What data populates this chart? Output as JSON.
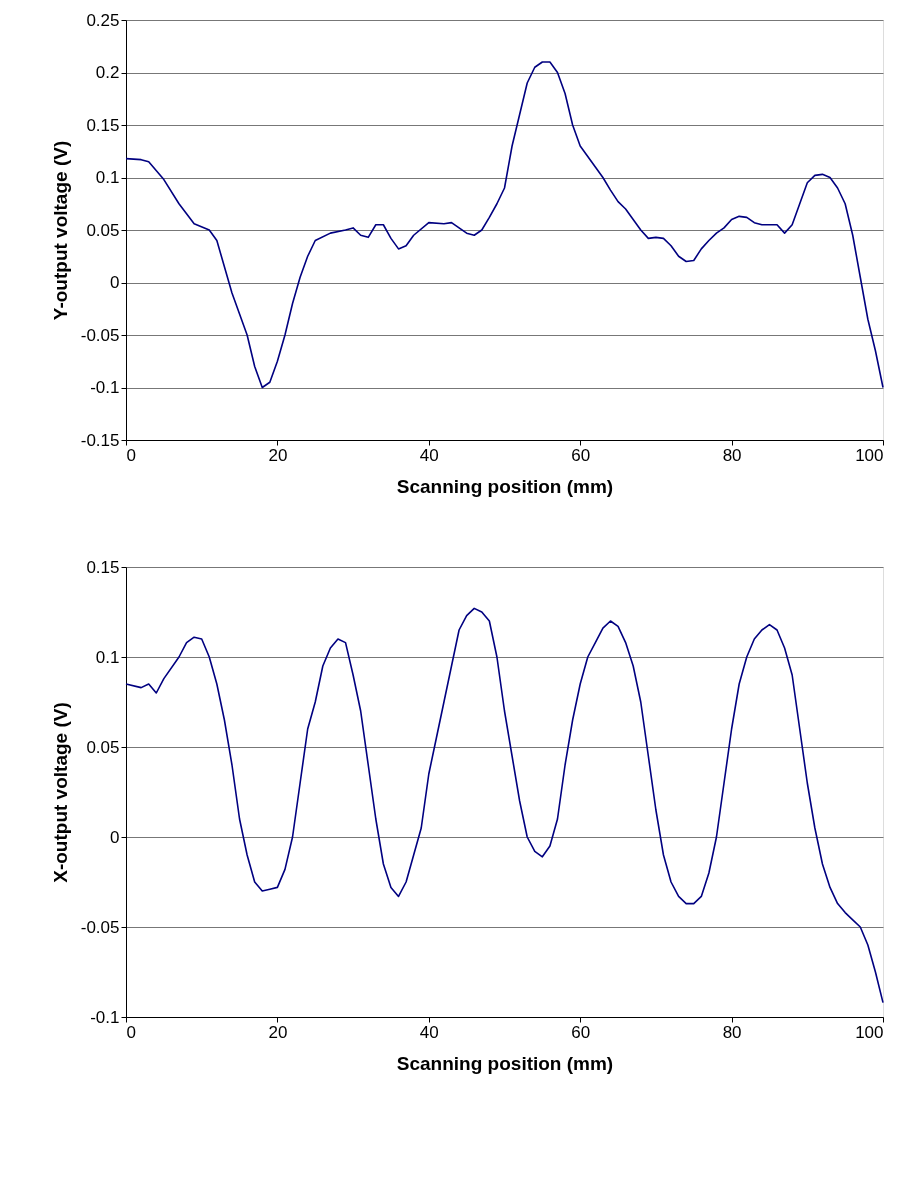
{
  "chart_data": [
    {
      "type": "line",
      "xlabel": "Scanning position (mm)",
      "ylabel": "Y-output voltage (V)",
      "xlim": [
        0,
        100
      ],
      "xticks": [
        0,
        20,
        40,
        60,
        80,
        100
      ],
      "ylim": [
        -0.15,
        0.25
      ],
      "yticks": [
        -0.15,
        -0.1,
        -0.05,
        0,
        0.05,
        0.1,
        0.15,
        0.2,
        0.25
      ],
      "grid": "y",
      "marker": "none",
      "line_style": "solid",
      "x": [
        0,
        2,
        3,
        5,
        7,
        9,
        11,
        12,
        13,
        14,
        15,
        16,
        17,
        18,
        19,
        20,
        21,
        22,
        23,
        24,
        25,
        27,
        29,
        30,
        31,
        32,
        33,
        34,
        35,
        36,
        37,
        38,
        40,
        42,
        43,
        45,
        46,
        47,
        48,
        49,
        50,
        51,
        52,
        53,
        54,
        55,
        56,
        57,
        58,
        59,
        60,
        61,
        62,
        63,
        64,
        65,
        66,
        67,
        68,
        69,
        70,
        71,
        72,
        73,
        74,
        75,
        76,
        77,
        78,
        79,
        80,
        81,
        82,
        83,
        84,
        85,
        86,
        87,
        88,
        89,
        90,
        91,
        92,
        93,
        94,
        95,
        96,
        97,
        98,
        99,
        100
      ],
      "series": [
        {
          "color": "#000080",
          "values": [
            0.118,
            0.117,
            0.115,
            0.098,
            0.075,
            0.056,
            0.05,
            0.04,
            0.015,
            -0.01,
            -0.03,
            -0.05,
            -0.08,
            -0.1,
            -0.095,
            -0.075,
            -0.05,
            -0.02,
            0.005,
            0.025,
            0.04,
            0.047,
            0.05,
            0.052,
            0.045,
            0.043,
            0.055,
            0.055,
            0.042,
            0.032,
            0.035,
            0.045,
            0.057,
            0.056,
            0.057,
            0.047,
            0.045,
            0.05,
            0.062,
            0.075,
            0.09,
            0.13,
            0.16,
            0.19,
            0.205,
            0.21,
            0.21,
            0.2,
            0.18,
            0.15,
            0.13,
            0.12,
            0.11,
            0.1,
            0.088,
            0.077,
            0.07,
            0.06,
            0.05,
            0.042,
            0.043,
            0.042,
            0.035,
            0.025,
            0.02,
            0.021,
            0.032,
            0.04,
            0.047,
            0.052,
            0.06,
            0.063,
            0.062,
            0.057,
            0.055,
            0.055,
            0.055,
            0.047,
            0.055,
            0.075,
            0.095,
            0.102,
            0.103,
            0.1,
            0.09,
            0.075,
            0.045,
            0.005,
            -0.035,
            -0.065,
            -0.1
          ]
        }
      ]
    },
    {
      "type": "line",
      "xlabel": "Scanning position (mm)",
      "ylabel": "X-output voltage (V)",
      "xlim": [
        0,
        100
      ],
      "xticks": [
        0,
        20,
        40,
        60,
        80,
        100
      ],
      "ylim": [
        -0.1,
        0.15
      ],
      "yticks": [
        -0.1,
        -0.05,
        0,
        0.05,
        0.1,
        0.15
      ],
      "grid": "y",
      "marker": "none",
      "line_style": "solid",
      "x": [
        0,
        2,
        3,
        4,
        5,
        7,
        8,
        9,
        10,
        11,
        12,
        13,
        14,
        15,
        16,
        17,
        18,
        19,
        20,
        21,
        22,
        23,
        24,
        25,
        26,
        27,
        28,
        29,
        30,
        31,
        32,
        33,
        34,
        35,
        36,
        37,
        38,
        39,
        40,
        41,
        42,
        43,
        44,
        45,
        46,
        47,
        48,
        49,
        50,
        51,
        52,
        53,
        54,
        55,
        56,
        57,
        58,
        59,
        60,
        61,
        62,
        63,
        64,
        65,
        66,
        67,
        68,
        69,
        70,
        71,
        72,
        73,
        74,
        75,
        76,
        77,
        78,
        79,
        80,
        81,
        82,
        83,
        84,
        85,
        86,
        87,
        88,
        89,
        90,
        91,
        92,
        93,
        94,
        95,
        96,
        97,
        98,
        99,
        100
      ],
      "series": [
        {
          "color": "#000080",
          "values": [
            0.085,
            0.083,
            0.085,
            0.08,
            0.088,
            0.1,
            0.108,
            0.111,
            0.11,
            0.1,
            0.085,
            0.065,
            0.04,
            0.01,
            -0.01,
            -0.025,
            -0.03,
            -0.029,
            -0.028,
            -0.018,
            0.0,
            0.03,
            0.06,
            0.075,
            0.095,
            0.105,
            0.11,
            0.108,
            0.09,
            0.07,
            0.04,
            0.01,
            -0.015,
            -0.028,
            -0.033,
            -0.025,
            -0.01,
            0.005,
            0.035,
            0.055,
            0.075,
            0.095,
            0.115,
            0.123,
            0.127,
            0.125,
            0.12,
            0.1,
            0.07,
            0.045,
            0.02,
            0.0,
            -0.008,
            -0.011,
            -0.005,
            0.01,
            0.04,
            0.065,
            0.085,
            0.1,
            0.108,
            0.116,
            0.12,
            0.117,
            0.108,
            0.095,
            0.075,
            0.045,
            0.015,
            -0.01,
            -0.025,
            -0.033,
            -0.037,
            -0.037,
            -0.033,
            -0.02,
            0.0,
            0.03,
            0.06,
            0.085,
            0.1,
            0.11,
            0.115,
            0.118,
            0.115,
            0.105,
            0.09,
            0.06,
            0.03,
            0.005,
            -0.015,
            -0.028,
            -0.037,
            -0.042,
            -0.046,
            -0.05,
            -0.06,
            -0.075,
            -0.092
          ]
        }
      ]
    }
  ]
}
